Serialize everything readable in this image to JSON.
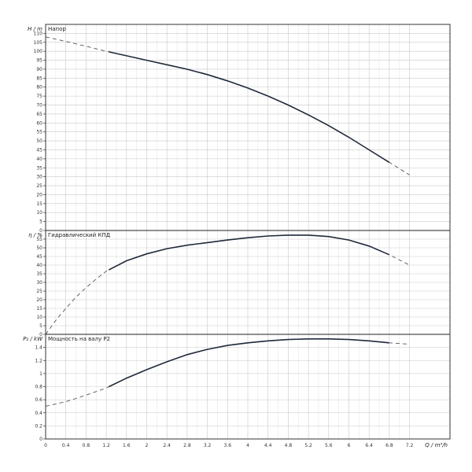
{
  "chart_data": {
    "type": "line",
    "x_axis": {
      "label": "Q / m³/h",
      "range": [
        0,
        8.0
      ],
      "ticks": [
        0,
        0.4,
        0.8,
        1.2,
        1.6,
        2,
        2.4,
        2.8,
        3.2,
        3.6,
        4,
        4.4,
        4.8,
        5.2,
        5.6,
        6,
        6.4,
        6.8,
        7.2
      ],
      "tick_labels": [
        "0",
        "0.4",
        "0.8",
        "1.2",
        "1.6",
        "2",
        "2.4",
        "2.8",
        "3.2",
        "3.6",
        "4",
        "4.4",
        "4.8",
        "5.2",
        "5.6",
        "6",
        "6.4",
        "6.8",
        "7.2"
      ],
      "grid": true
    },
    "panels": [
      {
        "id": "head",
        "title": "Напор",
        "ylabel": "H / m",
        "ylim": [
          0,
          115
        ],
        "yticks": [
          0,
          5,
          10,
          15,
          20,
          25,
          30,
          35,
          40,
          45,
          50,
          55,
          60,
          65,
          70,
          75,
          80,
          85,
          90,
          95,
          100,
          105,
          110
        ],
        "grid": true,
        "series": [
          {
            "solid_range": [
              1.25,
              6.8
            ],
            "x": [
              0,
              0.4,
              0.8,
              1.2,
              1.6,
              2.0,
              2.4,
              2.8,
              3.2,
              3.6,
              4.0,
              4.4,
              4.8,
              5.2,
              5.6,
              6.0,
              6.4,
              6.8,
              7.2
            ],
            "y": [
              108,
              105.5,
              102.8,
              100,
              97.5,
              95,
              92.5,
              90,
              87,
              83.5,
              79.5,
              75,
              70,
              64.5,
              58.5,
              52,
              45,
              38,
              31
            ]
          }
        ]
      },
      {
        "id": "efficiency",
        "title": "Гидравлический КПД",
        "ylabel": "η / %",
        "ylim": [
          0,
          60
        ],
        "yticks": [
          0,
          5,
          10,
          15,
          20,
          25,
          30,
          35,
          40,
          45,
          50,
          55
        ],
        "grid": true,
        "series": [
          {
            "solid_range": [
              1.25,
              6.8
            ],
            "x": [
              0,
              0.2,
              0.4,
              0.6,
              0.8,
              1.0,
              1.2,
              1.6,
              2.0,
              2.4,
              2.8,
              3.2,
              3.6,
              4.0,
              4.4,
              4.8,
              5.2,
              5.6,
              6.0,
              6.4,
              6.8,
              7.2
            ],
            "y": [
              0,
              8,
              15,
              21.5,
              27,
              32,
              36.5,
              42.5,
              46.5,
              49.5,
              51.5,
              53,
              54.5,
              55.8,
              56.8,
              57.3,
              57.3,
              56.5,
              54.5,
              51,
              46,
              40
            ]
          }
        ]
      },
      {
        "id": "power",
        "title": "Мощность на валу P2",
        "ylabel": "P₂ / kW",
        "ylim": [
          0,
          1.6
        ],
        "yticks": [
          0,
          0.2,
          0.4,
          0.6,
          0.8,
          1,
          1.2,
          1.4
        ],
        "ytick_labels": [
          "0",
          "0.2",
          "0.4",
          "0.6",
          "0.8",
          "1",
          "1.2",
          "1.4"
        ],
        "grid": true,
        "series": [
          {
            "solid_range": [
              1.25,
              6.8
            ],
            "x": [
              0,
              0.4,
              0.8,
              1.2,
              1.6,
              2.0,
              2.4,
              2.8,
              3.2,
              3.6,
              4.0,
              4.4,
              4.8,
              5.2,
              5.6,
              6.0,
              6.4,
              6.8,
              7.2
            ],
            "y": [
              0.5,
              0.57,
              0.67,
              0.78,
              0.93,
              1.06,
              1.18,
              1.29,
              1.37,
              1.43,
              1.47,
              1.5,
              1.52,
              1.53,
              1.53,
              1.52,
              1.5,
              1.47,
              1.45
            ]
          }
        ]
      }
    ]
  }
}
